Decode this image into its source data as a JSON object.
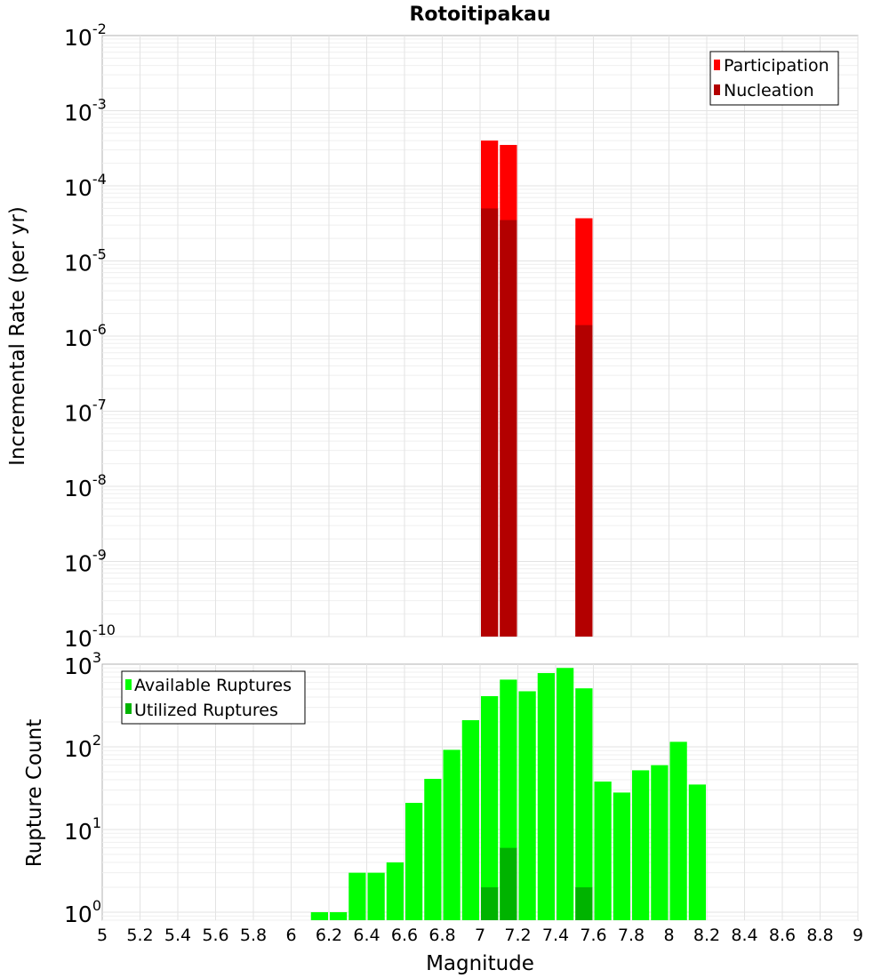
{
  "chart_data": [
    {
      "type": "bar",
      "title": "Rotoitipakau",
      "xlabel": "",
      "ylabel": "Incremental Rate (per yr)",
      "yscale": "log",
      "ylim": [
        1e-10,
        0.01
      ],
      "xlim": [
        5,
        9
      ],
      "grid": true,
      "legend_position": "top-right",
      "series": [
        {
          "name": "Participation",
          "color": "#ff0000",
          "x": [
            7.05,
            7.15,
            7.55
          ],
          "values": [
            0.0004,
            0.00035,
            3.7e-05
          ]
        },
        {
          "name": "Nucleation",
          "color": "#b30000",
          "x": [
            7.05,
            7.15,
            7.55
          ],
          "values": [
            5e-05,
            3.5e-05,
            1.4e-06
          ]
        }
      ]
    },
    {
      "type": "bar",
      "title": "",
      "xlabel": "Magnitude",
      "ylabel": "Rupture Count",
      "yscale": "log",
      "ylim": [
        0.8,
        1000
      ],
      "xlim": [
        5,
        9
      ],
      "grid": true,
      "legend_position": "top-left",
      "x_ticks": [
        "5",
        "5.2",
        "5.4",
        "5.6",
        "5.8",
        "6",
        "6.2",
        "6.4",
        "6.6",
        "6.8",
        "7",
        "7.2",
        "7.4",
        "7.6",
        "7.8",
        "8",
        "8.2",
        "8.4",
        "8.6",
        "8.8",
        "9"
      ],
      "series": [
        {
          "name": "Available Ruptures",
          "color": "#00ff00",
          "x": [
            6.15,
            6.25,
            6.35,
            6.45,
            6.55,
            6.65,
            6.75,
            6.85,
            6.95,
            7.05,
            7.15,
            7.25,
            7.35,
            7.45,
            7.55,
            7.65,
            7.75,
            7.85,
            7.95,
            8.05,
            8.15
          ],
          "values": [
            1,
            1,
            3,
            3,
            4,
            21,
            41,
            92,
            210,
            410,
            650,
            470,
            780,
            900,
            510,
            38,
            28,
            52,
            60,
            115,
            35
          ]
        },
        {
          "name": "Utilized Ruptures",
          "color": "#00b300",
          "x": [
            7.05,
            7.15,
            7.55
          ],
          "values": [
            2,
            6,
            2
          ]
        }
      ]
    }
  ]
}
